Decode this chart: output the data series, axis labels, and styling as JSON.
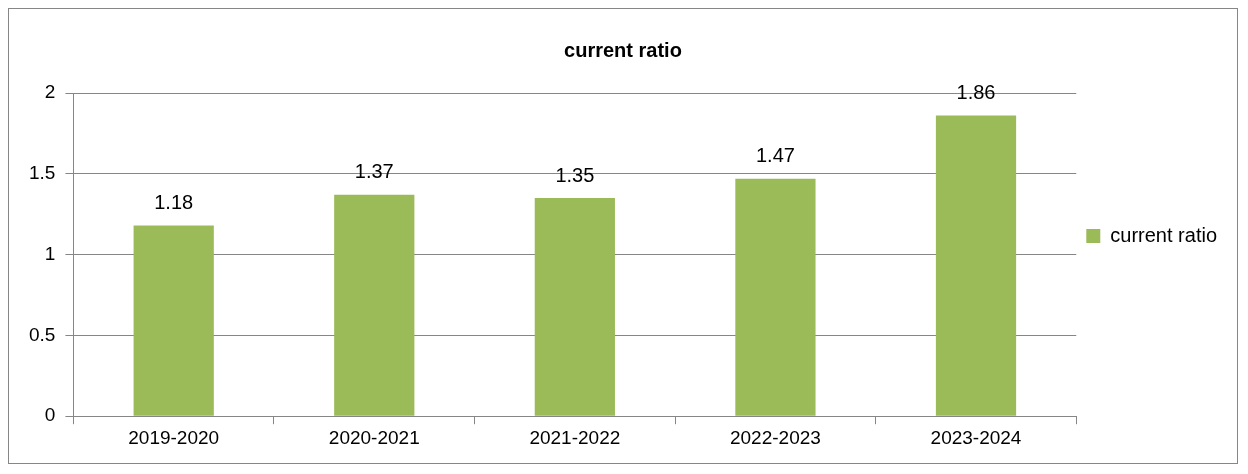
{
  "chart_data": {
    "type": "bar",
    "title": "current ratio",
    "categories": [
      "2019-2020",
      "2020-2021",
      "2021-2022",
      "2022-2023",
      "2023-2024"
    ],
    "series": [
      {
        "name": "current ratio",
        "color": "#9bbb59",
        "values": [
          1.18,
          1.37,
          1.35,
          1.47,
          1.86
        ]
      }
    ],
    "ylim": [
      0,
      2
    ],
    "yticks": [
      0,
      0.5,
      1,
      1.5,
      2
    ],
    "grid": "y",
    "legend": "right",
    "data_labels": true
  }
}
